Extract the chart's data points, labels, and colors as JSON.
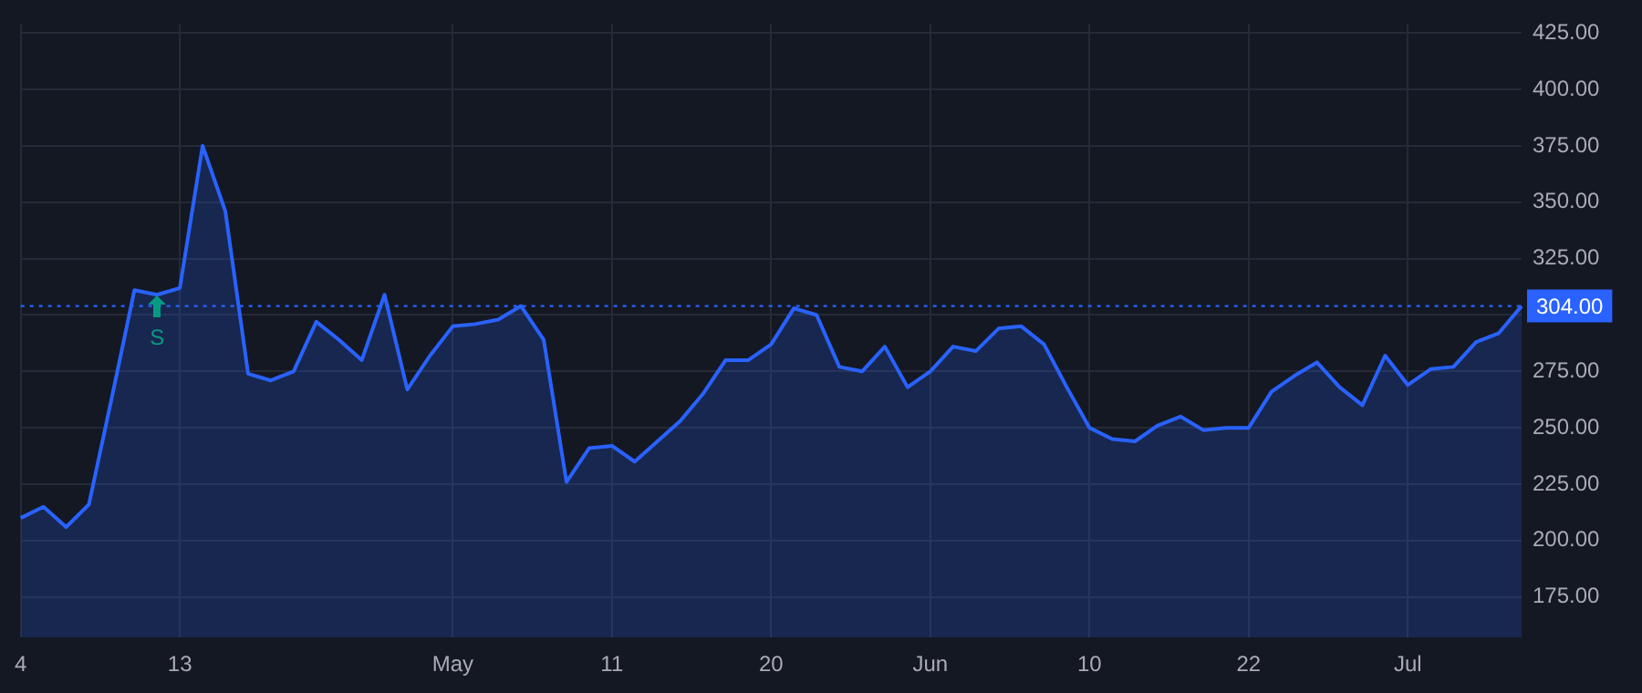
{
  "chart_data": {
    "type": "area",
    "categories": [
      "4",
      null,
      null,
      null,
      null,
      null,
      null,
      "13",
      null,
      null,
      null,
      null,
      null,
      null,
      null,
      null,
      null,
      null,
      null,
      "May",
      null,
      null,
      null,
      null,
      null,
      null,
      "11",
      null,
      null,
      null,
      null,
      null,
      null,
      "20",
      null,
      null,
      null,
      null,
      null,
      null,
      "Jun",
      null,
      null,
      null,
      null,
      null,
      null,
      "10",
      null,
      null,
      null,
      null,
      null,
      null,
      "22",
      null,
      null,
      null,
      null,
      null,
      null,
      "Jul",
      null,
      null,
      null,
      null,
      null
    ],
    "series": [
      {
        "color": "#2962ff",
        "values": [
          210,
          215,
          206,
          216,
          263,
          311,
          309,
          312,
          375,
          346,
          274,
          271,
          275,
          297,
          289,
          280,
          309,
          267,
          282,
          295,
          296,
          298,
          304,
          289,
          226,
          241,
          242,
          235,
          244,
          253,
          265,
          280,
          280,
          287,
          303,
          300,
          277,
          275,
          286,
          268,
          275,
          286,
          284,
          294,
          295,
          287,
          268,
          250,
          245,
          244,
          251,
          255,
          249,
          250,
          250,
          266,
          273,
          279,
          268,
          260,
          282,
          269,
          276,
          277,
          288,
          292,
          304
        ]
      }
    ],
    "ylim": [
      157,
      429
    ],
    "yticks": [
      {
        "value": 175,
        "label": "175.00"
      },
      {
        "value": 200,
        "label": "200.00"
      },
      {
        "value": 225,
        "label": "225.00"
      },
      {
        "value": 250,
        "label": "250.00"
      },
      {
        "value": 275,
        "label": "275.00"
      },
      {
        "value": 300,
        "label": null
      },
      {
        "value": 325,
        "label": "325.00"
      },
      {
        "value": 350,
        "label": "350.00"
      },
      {
        "value": 375,
        "label": "375.00"
      },
      {
        "value": 400,
        "label": "400.00"
      },
      {
        "value": 425,
        "label": "425.00"
      }
    ],
    "ref_lines": [
      {
        "axis": "y",
        "value": 304,
        "label": "304.00",
        "color": "#2962ff",
        "line_style": "dotted"
      }
    ],
    "annotations": [
      "S"
    ],
    "grid": true,
    "legend": false,
    "marker": "none",
    "line_style": "solid"
  }
}
